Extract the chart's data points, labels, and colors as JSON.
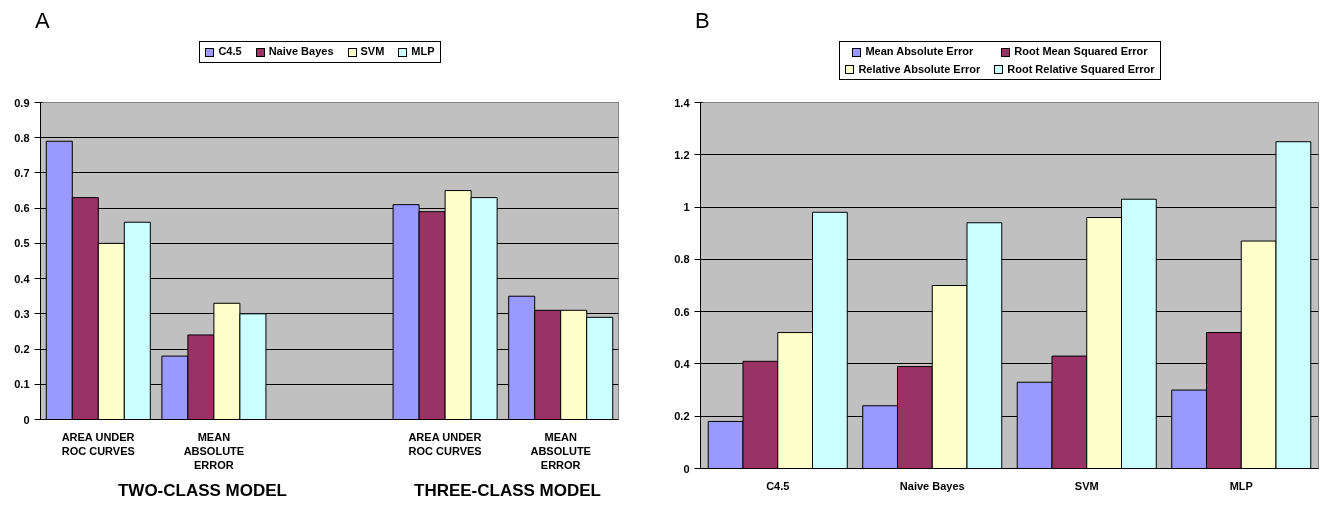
{
  "chart_data": [
    {
      "type": "bar",
      "categories": [
        "AREA UNDER\nROC CURVES",
        "MEAN\nABSOLUTE\nERROR",
        null,
        "AREA UNDER\nROC CURVES",
        "MEAN\nABSOLUTE\nERROR"
      ],
      "series": [
        {
          "name": "C4.5",
          "color": "#9999ff",
          "values": [
            0.79,
            0.18,
            null,
            0.61,
            0.35
          ]
        },
        {
          "name": "Naive Bayes",
          "color": "#993366",
          "values": [
            0.63,
            0.24,
            null,
            0.59,
            0.31
          ]
        },
        {
          "name": "SVM",
          "color": "#ffffcc",
          "values": [
            0.5,
            0.33,
            null,
            0.65,
            0.31
          ]
        },
        {
          "name": "MLP",
          "color": "#ccffff",
          "values": [
            0.56,
            0.3,
            null,
            0.63,
            0.29
          ]
        }
      ],
      "ylim": [
        0,
        0.9
      ],
      "yticks": [
        0,
        0.1,
        0.2,
        0.3,
        0.4,
        0.5,
        0.6,
        0.7,
        0.8,
        0.9
      ],
      "grid": "y",
      "legend": "top",
      "annotations": [
        "A",
        "TWO-CLASS MODEL",
        "THREE-CLASS MODEL"
      ]
    },
    {
      "type": "bar",
      "categories": [
        "C4.5",
        "Naive Bayes",
        "SVM",
        "MLP"
      ],
      "series": [
        {
          "name": "Mean Absolute Error",
          "color": "#9999ff",
          "values": [
            0.18,
            0.24,
            0.33,
            0.3
          ]
        },
        {
          "name": "Root Mean Squared Error",
          "color": "#993366",
          "values": [
            0.41,
            0.39,
            0.43,
            0.52
          ]
        },
        {
          "name": "Relative Absolute Error",
          "color": "#ffffcc",
          "values": [
            0.52,
            0.7,
            0.96,
            0.87
          ]
        },
        {
          "name": "Root Relative Squared Error",
          "color": "#ccffff",
          "values": [
            0.98,
            0.94,
            1.03,
            1.25
          ]
        }
      ],
      "ylim": [
        0,
        1.4
      ],
      "yticks": [
        0,
        0.2,
        0.4,
        0.6,
        0.8,
        1,
        1.2,
        1.4
      ],
      "grid": "y",
      "legend": "top",
      "annotations": [
        "B"
      ]
    }
  ]
}
